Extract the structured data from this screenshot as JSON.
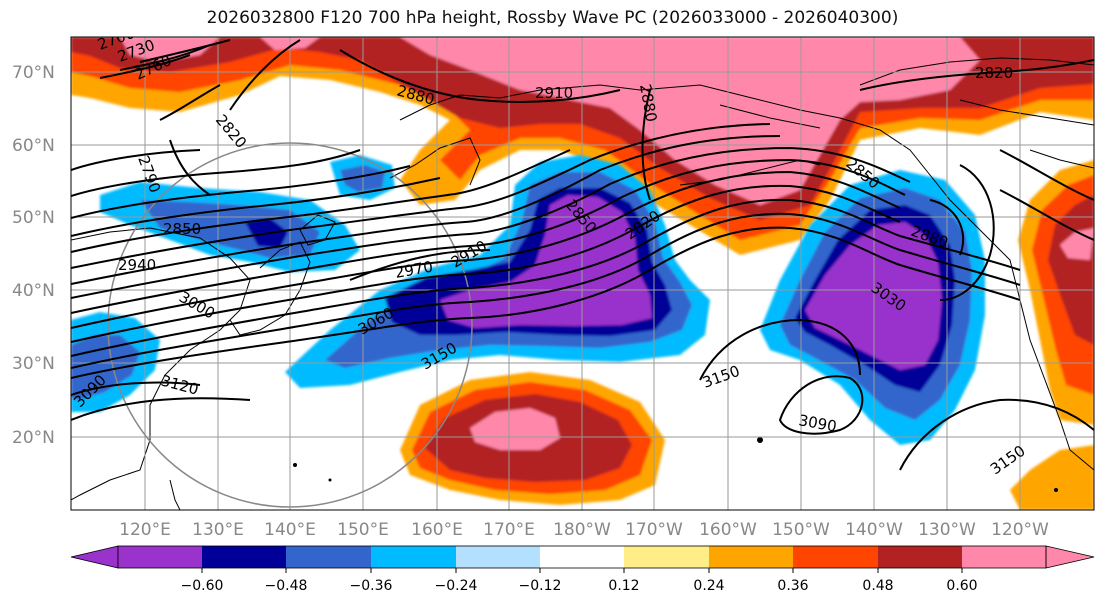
{
  "title": "2026032800 F120 700 hPa height, Rossby Wave PC (2026033000 - 2026040300)",
  "lat_labels": [
    "70°N",
    "60°N",
    "50°N",
    "40°N",
    "30°N",
    "20°N"
  ],
  "lon_labels": [
    "120°E",
    "130°E",
    "140°E",
    "150°E",
    "160°E",
    "170°E",
    "180°W",
    "170°W",
    "160°W",
    "150°W",
    "140°W",
    "130°W",
    "120°W"
  ],
  "contour_labels": [
    "2700",
    "2730",
    "2760",
    "2880",
    "2910",
    "2880",
    "2820",
    "2820",
    "2790",
    "2850",
    "2850",
    "2820",
    "2850",
    "2880",
    "2940",
    "2970",
    "2910",
    "3000",
    "3060",
    "3030",
    "3150",
    "3150",
    "3090",
    "3120",
    "3090",
    "3150"
  ],
  "colorbar": {
    "colors": [
      "#9933cc",
      "#000099",
      "#3366cc",
      "#00bbff",
      "#b3e0ff",
      "#ffffff",
      "#ffee88",
      "#ffa500",
      "#ff4500",
      "#b22222",
      "#ff88aa"
    ],
    "tick_labels": [
      "−0.60",
      "−0.48",
      "−0.36",
      "−0.24",
      "−0.12",
      "0.12",
      "0.24",
      "0.36",
      "0.48",
      "0.60"
    ]
  }
}
